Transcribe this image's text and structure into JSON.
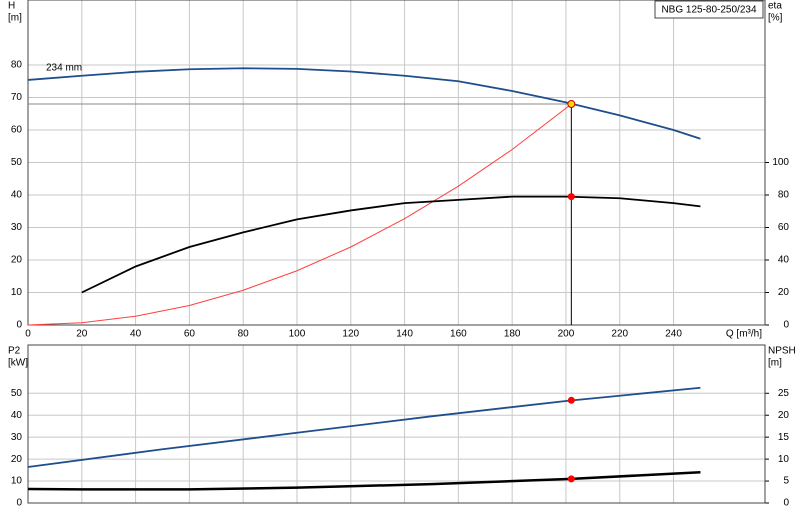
{
  "chart_data": [
    {
      "type": "line",
      "title": "NBG 125-80-250/234",
      "xlabel": "Q [m³/h]",
      "ylabel": "H",
      "yunit": "[m]",
      "y2label": "eta",
      "y2unit": "[%]",
      "xlim": [
        0,
        274
      ],
      "xticks": [
        0,
        20,
        40,
        60,
        80,
        100,
        120,
        140,
        160,
        180,
        200,
        220,
        240
      ],
      "ylim": [
        0,
        100
      ],
      "yticks": [
        0,
        10,
        20,
        30,
        40,
        50,
        60,
        70,
        80
      ],
      "y2lim": [
        0,
        200
      ],
      "y2ticks": [
        0,
        20,
        40,
        60,
        80,
        100
      ],
      "grid": true,
      "xtick_labels": true,
      "series": [
        {
          "name": "234 mm",
          "color": "#1f4e8c",
          "x": [
            0,
            20,
            40,
            60,
            80,
            100,
            120,
            140,
            160,
            180,
            200,
            220,
            240,
            250
          ],
          "values": [
            75.4,
            76.7,
            77.9,
            78.7,
            79,
            78.8,
            78,
            76.7,
            75,
            72,
            68.5,
            64.5,
            60,
            57.3
          ]
        },
        {
          "color": "#ff4040",
          "x": [
            0,
            20,
            40,
            60,
            80,
            100,
            120,
            140,
            160,
            180,
            200,
            202
          ],
          "values": [
            0,
            0.7,
            2.7,
            6,
            10.7,
            16.7,
            24,
            32.7,
            42.7,
            54,
            66.7,
            68
          ]
        },
        {
          "axis": "y2",
          "color": "#000000",
          "x": [
            20,
            40,
            60,
            80,
            100,
            120,
            140,
            160,
            180,
            200,
            220,
            240,
            250
          ],
          "values": [
            20,
            36,
            48,
            57,
            65,
            70.5,
            75,
            77,
            79,
            79,
            78,
            75,
            73
          ]
        }
      ],
      "duty_point": {
        "x": 202,
        "y": 68,
        "y2": 79,
        "color": "#ffd700"
      }
    },
    {
      "type": "line",
      "ylabel": "P2",
      "yunit": "[kW]",
      "y2label": "NPSH",
      "y2unit": "[m]",
      "xlim": [
        0,
        274
      ],
      "xticks": [
        0,
        20,
        40,
        60,
        80,
        100,
        120,
        140,
        160,
        180,
        200,
        220,
        240
      ],
      "ylim": [
        0,
        72
      ],
      "yticks": [
        0,
        10,
        20,
        30,
        40,
        50
      ],
      "y2lim": [
        0,
        36
      ],
      "y2ticks": [
        0,
        5,
        10,
        15,
        20,
        25
      ],
      "grid": true,
      "xtick_labels": false,
      "series": [
        {
          "color": "#1f4e8c",
          "x": [
            0,
            50,
            100,
            150,
            200,
            250
          ],
          "values": [
            16.4,
            24.5,
            32,
            39.5,
            46.5,
            52.5
          ]
        },
        {
          "axis": "y2",
          "color": "#000000",
          "x": [
            0,
            20,
            60,
            100,
            150,
            202,
            250
          ],
          "values": [
            3.2,
            3.1,
            3.1,
            3.5,
            4.3,
            5.5,
            7
          ]
        }
      ],
      "duty_point": {
        "x": 202,
        "y": 46.8,
        "y2": 5.5,
        "color": "#ff0000"
      }
    }
  ]
}
